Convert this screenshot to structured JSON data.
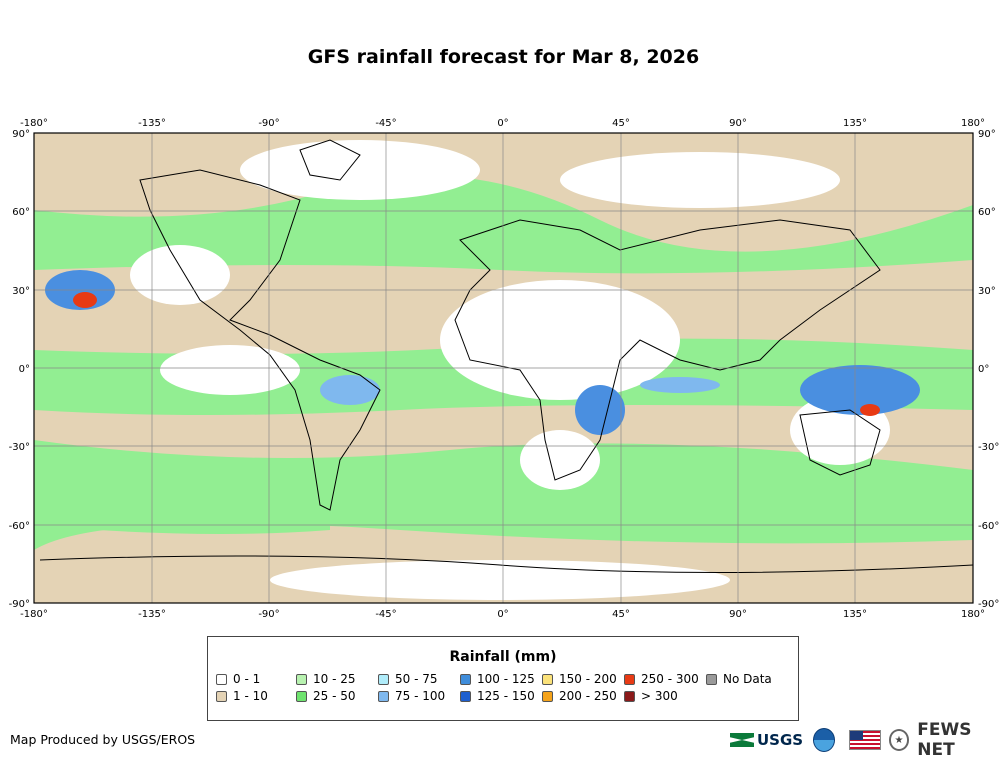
{
  "title": "GFS rainfall forecast for Mar 8, 2026",
  "map": {
    "lon_ticks": [
      "-180°",
      "-135°",
      "-90°",
      "-45°",
      "0°",
      "45°",
      "90°",
      "135°",
      "180°"
    ],
    "lat_ticks": [
      "90°",
      "60°",
      "30°",
      "0°",
      "-30°",
      "-60°",
      "-90°"
    ],
    "colors": {
      "dry": "#ffffff",
      "light": "#e4d3b5",
      "green": "#92ee92",
      "blue": "#4a8fe0",
      "land_desert": "#ffffff"
    }
  },
  "legend": {
    "title": "Rainfall (mm)",
    "items": [
      {
        "label": "0 - 1",
        "color": "#ffffff"
      },
      {
        "label": "1 - 10",
        "color": "#e4d3b5"
      },
      {
        "label": "10 - 25",
        "color": "#b8f2b0"
      },
      {
        "label": "25 - 50",
        "color": "#6fe36f"
      },
      {
        "label": "50 - 75",
        "color": "#b0ecfa"
      },
      {
        "label": "75 - 100",
        "color": "#7fb8ee"
      },
      {
        "label": "100 - 125",
        "color": "#3f8ddb"
      },
      {
        "label": "125 - 150",
        "color": "#1e5fcf"
      },
      {
        "label": "150 - 200",
        "color": "#fbe27a"
      },
      {
        "label": "200 - 250",
        "color": "#f5a31a"
      },
      {
        "label": "250 - 300",
        "color": "#e83a14"
      },
      {
        "label": "> 300",
        "color": "#8b1a1a"
      },
      {
        "label": "No Data",
        "color": "#9a9a9a"
      }
    ]
  },
  "credit": "Map Produced by USGS/EROS",
  "logos": {
    "usgs": "USGS",
    "fews": "FEWS NET"
  }
}
